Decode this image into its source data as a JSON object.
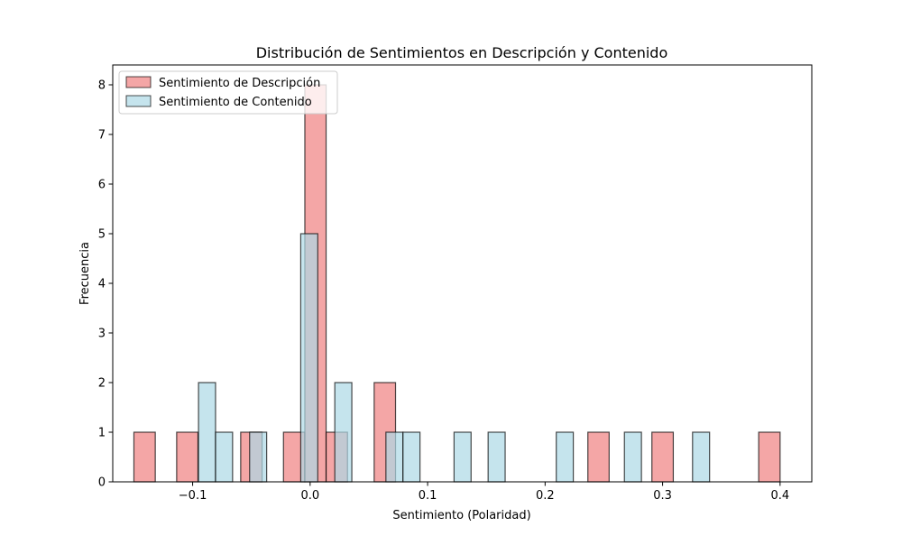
{
  "chart_data": {
    "type": "bar",
    "title": "Distribución de Sentimientos en Descripción y Contenido",
    "xlabel": "Sentimiento (Polaridad)",
    "ylabel": "Frecuencia",
    "xlim": [
      -0.168,
      0.427
    ],
    "ylim": [
      0,
      8.4
    ],
    "xticks": [
      -0.1,
      0.0,
      0.1,
      0.2,
      0.3,
      0.4
    ],
    "xtick_labels": [
      "−0.1",
      "0.0",
      "0.1",
      "0.2",
      "0.3",
      "0.4"
    ],
    "yticks": [
      0,
      1,
      2,
      3,
      4,
      5,
      6,
      7,
      8
    ],
    "ytick_labels": [
      "0",
      "1",
      "2",
      "3",
      "4",
      "5",
      "6",
      "7",
      "8"
    ],
    "grid": false,
    "legend_position": "top-left",
    "series": [
      {
        "name": "Sentimiento de Descripción",
        "color": "#f08080",
        "bins": [
          {
            "x0": -0.15,
            "x1": -0.1318,
            "count": 1
          },
          {
            "x0": -0.1136,
            "x1": -0.0955,
            "count": 1
          },
          {
            "x0": -0.0591,
            "x1": -0.0409,
            "count": 1
          },
          {
            "x0": -0.0227,
            "x1": -0.0045,
            "count": 1
          },
          {
            "x0": -0.0045,
            "x1": 0.0136,
            "count": 8
          },
          {
            "x0": 0.0136,
            "x1": 0.0318,
            "count": 1
          },
          {
            "x0": 0.0545,
            "x1": 0.0727,
            "count": 2
          },
          {
            "x0": 0.2364,
            "x1": 0.2545,
            "count": 1
          },
          {
            "x0": 0.2909,
            "x1": 0.3091,
            "count": 1
          },
          {
            "x0": 0.3818,
            "x1": 0.4,
            "count": 1
          }
        ]
      },
      {
        "name": "Sentimiento de Contenido",
        "color": "#add8e6",
        "bins": [
          {
            "x0": -0.095,
            "x1": -0.0805,
            "count": 2
          },
          {
            "x0": -0.0805,
            "x1": -0.066,
            "count": 1
          },
          {
            "x0": -0.0515,
            "x1": -0.037,
            "count": 1
          },
          {
            "x0": -0.008,
            "x1": 0.0065,
            "count": 5
          },
          {
            "x0": 0.021,
            "x1": 0.0355,
            "count": 2
          },
          {
            "x0": 0.0645,
            "x1": 0.079,
            "count": 1
          },
          {
            "x0": 0.079,
            "x1": 0.0935,
            "count": 1
          },
          {
            "x0": 0.1225,
            "x1": 0.137,
            "count": 1
          },
          {
            "x0": 0.1515,
            "x1": 0.166,
            "count": 1
          },
          {
            "x0": 0.2095,
            "x1": 0.224,
            "count": 1
          },
          {
            "x0": 0.2675,
            "x1": 0.282,
            "count": 1
          },
          {
            "x0": 0.3255,
            "x1": 0.34,
            "count": 1
          }
        ]
      }
    ]
  }
}
